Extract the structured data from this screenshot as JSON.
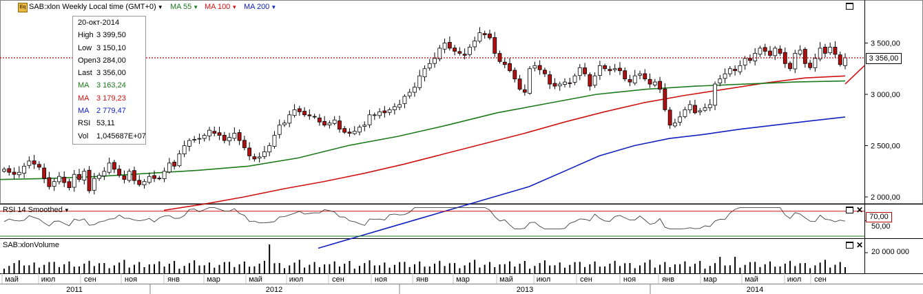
{
  "header": {
    "instrument": "SAB:xlon Weekly Local time (GMT+0)",
    "ma55_label": "MA 55",
    "ma100_label": "MA 100",
    "ma200_label": "MA 200",
    "icon": "eq-icon"
  },
  "info_box": {
    "date": "20-окт-2014",
    "rows": [
      {
        "key": "High",
        "value": "3 399,50",
        "color": "#000000"
      },
      {
        "key": "Low",
        "value": "3 150,10",
        "color": "#000000"
      },
      {
        "key": "Open",
        "value": "3 284,00",
        "color": "#000000"
      },
      {
        "key": "Last",
        "value": "3 356,00",
        "color": "#000000"
      },
      {
        "key": "MA",
        "value": "3 163,24",
        "color": "#1a7a1a"
      },
      {
        "key": "MA",
        "value": "3 179,23",
        "color": "#d01010"
      },
      {
        "key": "MA",
        "value": "2 779,47",
        "color": "#1020c0"
      },
      {
        "key": "RSI",
        "value": "53,11",
        "color": "#000000"
      },
      {
        "key": "Vol",
        "value": "1,045687E+07",
        "color": "#000000"
      }
    ]
  },
  "price_axis": {
    "labels": [
      "3 500,00",
      "3 000,00",
      "2 500,00",
      "2 000,00"
    ],
    "current_price_label": "3 356,00"
  },
  "rsi_panel": {
    "title": "RSI 14 Smoothed",
    "level_label": "70,00",
    "axis_label": "50,00"
  },
  "volume_panel": {
    "title": "SAB:xlonVolume",
    "axis_label": "20 000 000"
  },
  "time_axis": {
    "months": [
      "май",
      "июл",
      "сен",
      "ноя",
      "янв",
      "мар",
      "май",
      "июл",
      "сен",
      "ноя",
      "янв",
      "мар",
      "май",
      "июл",
      "сен",
      "ноя",
      "янв",
      "мар",
      "май",
      "июл",
      "сен"
    ],
    "years": [
      "2011",
      "2012",
      "2013",
      "2014"
    ]
  },
  "colors": {
    "ma55": "#1a7a1a",
    "ma100": "#d01010",
    "ma200": "#1020c0",
    "candle_up": "#ffffff",
    "candle_down": "#b01010",
    "rsi_line": "#404040",
    "rsi_level": "#d01010",
    "volume_bar": "#000000"
  },
  "chart_data": {
    "type": "candlestick",
    "interval": "weekly",
    "current_price": 3356,
    "price_axis_ticks": [
      2000,
      2500,
      3000,
      3500
    ],
    "price_range": [
      1870,
      3950
    ],
    "rsi_level": 70,
    "volume_tick": 20000000,
    "close_series": [
      2270,
      2240,
      2220,
      2240,
      2300,
      2350,
      2320,
      2290,
      2180,
      2100,
      2150,
      2200,
      2140,
      2090,
      2220,
      2170,
      2250,
      2060,
      2180,
      2210,
      2250,
      2330,
      2270,
      2210,
      2170,
      2250,
      2160,
      2120,
      2150,
      2200,
      2180,
      2180,
      2250,
      2330,
      2300,
      2420,
      2500,
      2550,
      2560,
      2570,
      2600,
      2650,
      2620,
      2600,
      2550,
      2580,
      2620,
      2550,
      2480,
      2400,
      2370,
      2390,
      2440,
      2500,
      2600,
      2700,
      2720,
      2800,
      2850,
      2830,
      2800,
      2790,
      2780,
      2730,
      2700,
      2720,
      2750,
      2660,
      2630,
      2620,
      2640,
      2680,
      2700,
      2800,
      2800,
      2830,
      2820,
      2850,
      2880,
      2900,
      2980,
      3020,
      3070,
      3180,
      3250,
      3300,
      3350,
      3450,
      3500,
      3450,
      3420,
      3400,
      3380,
      3460,
      3520,
      3600,
      3580,
      3550,
      3400,
      3320,
      3290,
      3230,
      3150,
      3050,
      3020,
      3250,
      3280,
      3240,
      3200,
      3100,
      3080,
      3100,
      3120,
      3110,
      3180,
      3260,
      3200,
      3080,
      3180,
      3280,
      3250,
      3230,
      3250,
      3230,
      3150,
      3120,
      3180,
      3200,
      3150,
      3100,
      3120,
      3050,
      2850,
      2700,
      2720,
      2780,
      2850,
      2900,
      2820,
      2840,
      2870,
      2900,
      3100,
      3150,
      3200,
      3250,
      3230,
      3280,
      3350,
      3330,
      3400,
      3450,
      3420,
      3380,
      3450,
      3400,
      3300,
      3250,
      3400,
      3430,
      3300,
      3260,
      3350,
      3450,
      3400,
      3460,
      3390,
      3290,
      3356
    ],
    "ma55_series": [
      2170,
      2180,
      2200,
      2230,
      2260,
      2300,
      2380,
      2500,
      2590,
      2700,
      2820,
      2910,
      3000,
      3050,
      3080,
      3100,
      3120,
      3130
    ],
    "ma100_series": [
      1870,
      1930,
      2000,
      2080,
      2150,
      2230,
      2320,
      2420,
      2520,
      2620,
      2730,
      2830,
      2920,
      2990,
      3050,
      3110,
      3160,
      3179
    ],
    "ma200_series": [
      1500,
      1600,
      1700,
      1800,
      1900,
      2000,
      2100,
      2250,
      2400,
      2500,
      2570,
      2610,
      2660,
      2700,
      2740,
      2779
    ],
    "volume_note": "weekly volume spikes near 2012-05 and 2014-09",
    "latest": {
      "date": "20-окт-2014",
      "high": 3399.5,
      "low": 3150.1,
      "open": 3284.0,
      "last": 3356.0,
      "ma55": 3163.24,
      "ma100": 3179.23,
      "ma200": 2779.47,
      "rsi": 53.11,
      "volume": 10456870
    }
  }
}
